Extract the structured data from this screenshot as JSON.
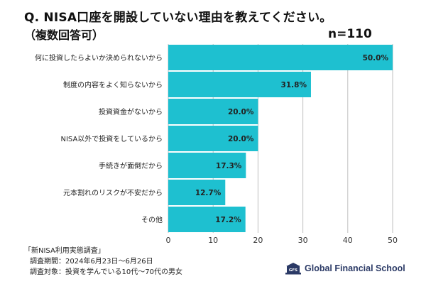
{
  "header": {
    "title_line1": "Q. NISA口座を開設していない理由を教えてください。",
    "title_line2": "（複数回答可）",
    "sample_size": "n=110"
  },
  "chart_data": {
    "type": "bar",
    "orientation": "horizontal",
    "categories": [
      "何に投資したらよいか決められないから",
      "制度の内容をよく知らないから",
      "投資資金がないから",
      "NISA以外で投資をしているから",
      "手続きが面倒だから",
      "元本割れのリスクが不安だから",
      "その他"
    ],
    "values": [
      50.0,
      31.8,
      20.0,
      20.0,
      17.3,
      12.7,
      17.2
    ],
    "value_labels": [
      "50.0%",
      "31.8%",
      "20.0%",
      "20.0%",
      "17.3%",
      "12.7%",
      "17.2%"
    ],
    "xlim": [
      0,
      50
    ],
    "xticks": [
      "0",
      "10",
      "20",
      "30",
      "40",
      "50"
    ],
    "grid": true,
    "bar_color": "#1EC0D0",
    "grid_color": "#bfbfbf"
  },
  "footer": {
    "line1": "「新NISA利用実態調査」",
    "line2": "調査期間：2024年6月23日〜6月26日",
    "line3": "調査対象：投資を学んでいる10代〜70代の男女"
  },
  "logo": {
    "text": "Global Financial School",
    "mark_text": "GFS",
    "icon": "school-building-icon",
    "color": "#2b3a66"
  }
}
